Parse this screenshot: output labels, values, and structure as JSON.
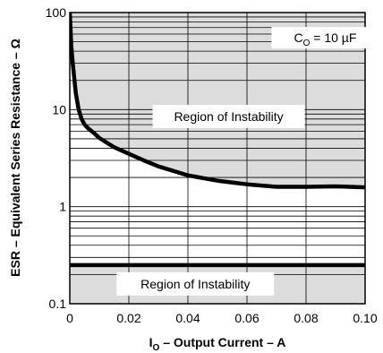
{
  "chart_data": {
    "type": "line",
    "title": "",
    "xlabel": "I",
    "xlabel_sub": "O",
    "xlabel_rest": " – Output Current – A",
    "ylabel": "ESR – Equivalent Series Resistance – Ω",
    "xlim": [
      0,
      0.1
    ],
    "ylim": [
      0.1,
      100
    ],
    "y_scale": "log",
    "x_ticks": [
      0,
      0.02,
      0.04,
      0.06,
      0.08,
      0.1
    ],
    "x_tick_labels": [
      "0",
      "0.02",
      "0.04",
      "0.06",
      "0.08",
      "0.10"
    ],
    "y_ticks": [
      0.1,
      1,
      10,
      100
    ],
    "y_tick_labels": [
      "0.1",
      "1",
      "10",
      "100"
    ],
    "grid": true,
    "region_fill_color": "#dcdcdc",
    "line_color": "#000000",
    "series": [
      {
        "role": "upper-boundary",
        "x": [
          0,
          0.0005,
          0.001,
          0.002,
          0.003,
          0.004,
          0.005,
          0.006,
          0.008,
          0.01,
          0.015,
          0.02,
          0.025,
          0.03,
          0.04,
          0.05,
          0.06,
          0.07,
          0.08,
          0.09,
          0.1
        ],
        "y": [
          100,
          45,
          30,
          15,
          10,
          8,
          7,
          6.5,
          5.8,
          5.1,
          4.1,
          3.5,
          3.0,
          2.6,
          2.1,
          1.85,
          1.7,
          1.6,
          1.6,
          1.62,
          1.58
        ]
      },
      {
        "role": "lower-boundary",
        "x": [
          0,
          0.1
        ],
        "y": [
          0.25,
          0.25
        ]
      }
    ],
    "annotations": [
      {
        "id": "cap",
        "text_main": "C",
        "text_sub": "O",
        "text_rest": " = 10 µF",
        "x": 0.0865,
        "y": 55
      },
      {
        "id": "upper-region",
        "text": "Region of Instability",
        "x": 0.0538,
        "y": 8.5
      },
      {
        "id": "lower-region",
        "text": "Region of Instability",
        "x": 0.0425,
        "y": 0.16
      }
    ]
  }
}
